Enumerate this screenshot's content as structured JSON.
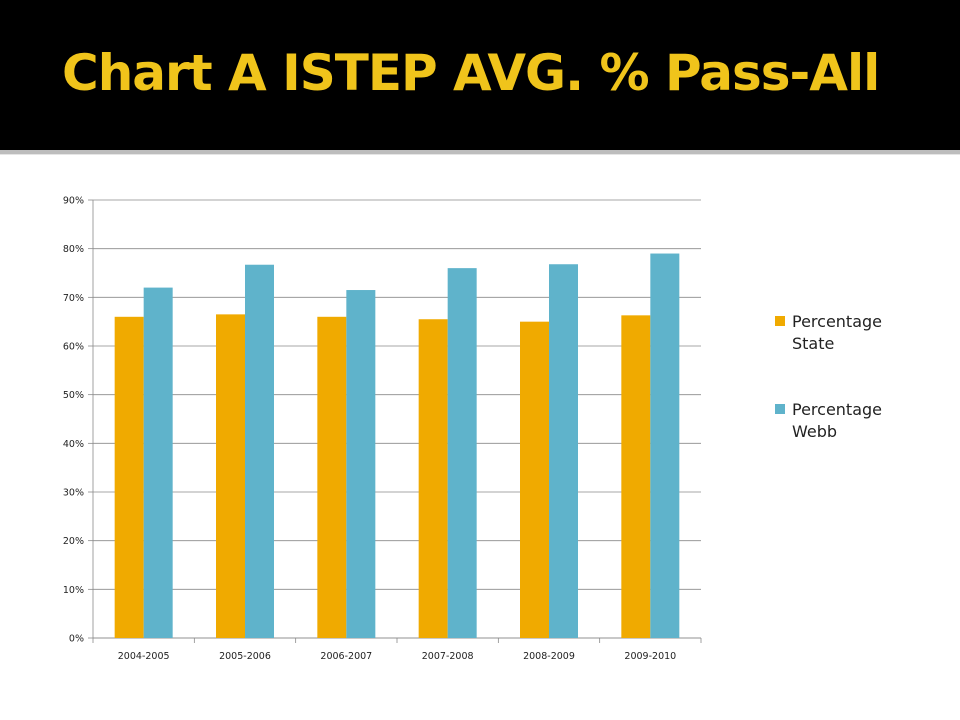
{
  "title": "Chart A ISTEP AVG. % Pass-All",
  "chart_data": {
    "type": "bar",
    "categories": [
      "2004-2005",
      "2005-2006",
      "2006-2007",
      "2007-2008",
      "2008-2009",
      "2009-2010"
    ],
    "series": [
      {
        "name": "Percentage State",
        "name_lines": [
          "Percentage",
          "State"
        ],
        "color": "#f0aa00",
        "values": [
          66,
          66.5,
          66,
          65.5,
          65,
          66.3
        ]
      },
      {
        "name": "Percentage Webb",
        "name_lines": [
          "Percentage",
          "Webb"
        ],
        "color": "#5fb3cb",
        "values": [
          72,
          76.7,
          71.5,
          76,
          76.8,
          79
        ]
      }
    ],
    "ylim": [
      0,
      90
    ],
    "yticks": [
      "0%",
      "10%",
      "20%",
      "30%",
      "40%",
      "50%",
      "60%",
      "70%",
      "80%",
      "90%"
    ],
    "grid": true,
    "legend": "right",
    "title": "",
    "xlabel": "",
    "ylabel": ""
  }
}
